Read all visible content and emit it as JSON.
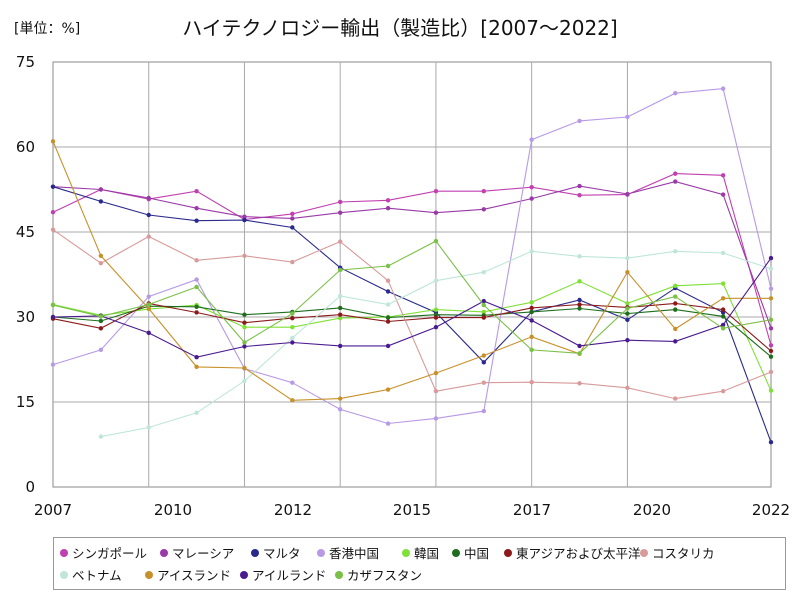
{
  "title": "ハイテクノロジー輸出（製造比）[2007～2022]",
  "unit": "[単位：%]",
  "chart_data": {
    "type": "line",
    "title": "ハイテクノロジー輸出（製造比）[2007～2022]",
    "ylabel": "[単位：%]",
    "ylim": [
      0,
      75
    ],
    "yticks": [
      0,
      15,
      30,
      45,
      60,
      75
    ],
    "xlim": [
      2007,
      2022
    ],
    "xtick_labels": [
      "2007",
      "2010",
      "2012",
      "2015",
      "2017",
      "2020",
      "2022"
    ],
    "grid": true,
    "legend_position": "bottom",
    "x": [
      2007,
      2008,
      2009,
      2010,
      2011,
      2012,
      2013,
      2014,
      2015,
      2016,
      2017,
      2018,
      2019,
      2020,
      2021,
      2022
    ],
    "series": [
      {
        "name": "シンガポール",
        "color": "#c040b0",
        "values": [
          48.5,
          52.5,
          50.8,
          52.2,
          47.2,
          48.2,
          50.3,
          50.6,
          52.2,
          52.2,
          52.9,
          51.5,
          51.6,
          55.3,
          55.0,
          25.0
        ]
      },
      {
        "name": "マレーシア",
        "color": "#9a3aa8",
        "values": [
          53.0,
          52.5,
          51.0,
          49.2,
          47.7,
          47.4,
          48.4,
          49.2,
          48.4,
          49.0,
          50.9,
          53.1,
          51.7,
          53.9,
          51.6,
          28.0
        ]
      },
      {
        "name": "マルタ",
        "color": "#2a2a8c",
        "values": [
          53.0,
          50.4,
          48.0,
          47.0,
          47.1,
          45.8,
          38.7,
          34.5,
          30.8,
          22.0,
          30.9,
          33.0,
          29.5,
          35.1,
          30.8,
          7.9
        ]
      },
      {
        "name": "香港中国",
        "color": "#b899e6",
        "values": [
          21.6,
          24.2,
          33.6,
          36.6,
          20.9,
          18.4,
          13.7,
          11.2,
          12.1,
          13.4,
          61.3,
          64.6,
          65.3,
          69.5,
          70.3,
          35.0
        ]
      },
      {
        "name": "韓国",
        "color": "#7fe036",
        "values": [
          32.2,
          30.3,
          31.4,
          32.1,
          28.2,
          28.2,
          29.8,
          30.0,
          31.3,
          30.9,
          32.6,
          36.3,
          32.4,
          35.5,
          35.9,
          17.0
        ]
      },
      {
        "name": "中国",
        "color": "#1e6e1e",
        "values": [
          30.0,
          29.3,
          31.9,
          31.8,
          30.4,
          30.9,
          31.6,
          29.9,
          30.4,
          30.3,
          30.9,
          31.5,
          30.6,
          31.3,
          30.1,
          23.0
        ]
      },
      {
        "name": "東アジアおよび太平洋",
        "color": "#8c1a1a",
        "values": [
          29.7,
          28.0,
          32.4,
          30.8,
          29.0,
          29.8,
          30.4,
          29.2,
          29.9,
          29.9,
          31.6,
          32.2,
          31.7,
          32.4,
          31.3,
          24.0
        ]
      },
      {
        "name": "コスタリカ",
        "color": "#d89a9a",
        "values": [
          45.4,
          39.5,
          44.2,
          40.0,
          40.8,
          39.7,
          43.3,
          36.4,
          16.9,
          18.4,
          18.5,
          18.3,
          17.5,
          15.6,
          16.9,
          20.3
        ]
      },
      {
        "name": "ベトナム",
        "color": "#bfe6d8",
        "values": [
          null,
          8.9,
          10.5,
          13.1,
          18.7,
          26.3,
          33.7,
          32.2,
          36.4,
          37.9,
          41.6,
          40.7,
          40.4,
          41.6,
          41.3,
          38.5
        ]
      },
      {
        "name": "アイスランド",
        "color": "#c8902a",
        "values": [
          61.0,
          40.8,
          31.5,
          21.2,
          21.0,
          15.3,
          15.6,
          17.2,
          20.1,
          23.2,
          26.5,
          23.5,
          37.9,
          27.9,
          33.3,
          33.3
        ]
      },
      {
        "name": "アイルランド",
        "color": "#4a1a90",
        "values": [
          30.0,
          30.2,
          27.2,
          22.9,
          24.8,
          25.5,
          24.9,
          24.9,
          28.2,
          32.8,
          29.4,
          24.9,
          25.9,
          25.7,
          28.6,
          40.4
        ]
      },
      {
        "name": "カザフスタン",
        "color": "#7ac046",
        "values": [
          32.1,
          30.1,
          32.2,
          35.3,
          25.5,
          30.6,
          38.3,
          39.0,
          43.4,
          32.1,
          24.2,
          23.6,
          31.5,
          33.6,
          28.0,
          29.5
        ]
      }
    ]
  }
}
